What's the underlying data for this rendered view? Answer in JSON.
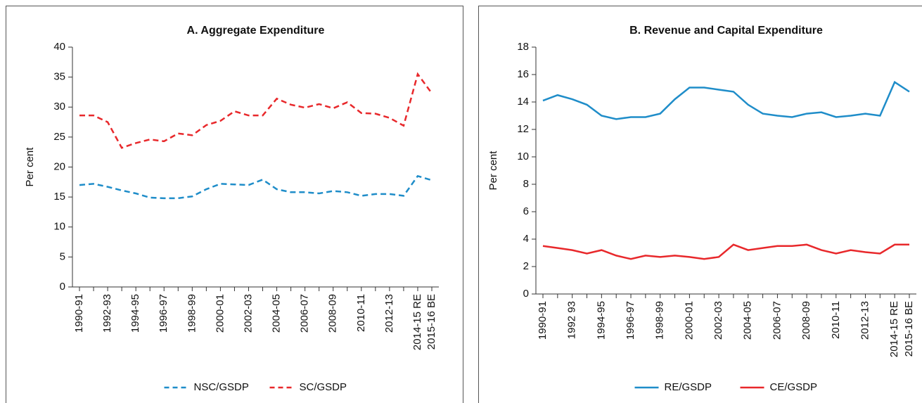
{
  "chart_data": [
    {
      "type": "line",
      "title": "A. Aggregate Expenditure",
      "ylabel": "Per cent",
      "categories": [
        "1990-91",
        null,
        "1992-93",
        null,
        "1994-95",
        null,
        "1996-97",
        null,
        "1998-99",
        null,
        "2000-01",
        null,
        "2002-03",
        null,
        "2004-05",
        null,
        "2006-07",
        null,
        "2008-09",
        null,
        "2010-11",
        null,
        "2012-13",
        null,
        "2014-15 RE",
        "2015-16 BE"
      ],
      "ylim": [
        0,
        40
      ],
      "yticks": [
        0,
        5,
        10,
        15,
        20,
        25,
        30,
        35,
        40
      ],
      "line_style": "dashed",
      "series": [
        {
          "name": "NSC/GSDP",
          "color": "#1f8dc9",
          "values": [
            17,
            17.2,
            16.7,
            16.1,
            15.6,
            14.9,
            14.8,
            14.8,
            15.1,
            16.3,
            17.2,
            17.1,
            17.0,
            17.9,
            16.3,
            15.8,
            15.8,
            15.6,
            16.0,
            15.8,
            15.2,
            15.5,
            15.5,
            15.2,
            18.5,
            17.8
          ]
        },
        {
          "name": "SC/GSDP",
          "color": "#e8282b",
          "values": [
            28.6,
            28.6,
            27.5,
            23.2,
            24.0,
            24.6,
            24.3,
            25.6,
            25.3,
            27.0,
            27.7,
            29.3,
            28.6,
            28.6,
            31.4,
            30.4,
            29.9,
            30.5,
            29.8,
            30.8,
            29.0,
            28.9,
            28.2,
            26.9,
            35.5,
            32.3
          ]
        }
      ]
    },
    {
      "type": "line",
      "title": "B. Revenue and Capital Expenditure",
      "ylabel": "Per cent",
      "categories": [
        "1990-91",
        null,
        "1992 93",
        null,
        "1994-95",
        null,
        "1996-97",
        null,
        "1998-99",
        null,
        "2000-01",
        null,
        "2002-03",
        null,
        "2004-05",
        null,
        "2006-07",
        null,
        "2008-09",
        null,
        "2010-11",
        null,
        "2012-13",
        null,
        "2014-15 RE",
        "2015-16 BE"
      ],
      "ylim": [
        0,
        18
      ],
      "yticks": [
        0,
        2,
        4,
        6,
        8,
        10,
        12,
        14,
        16,
        18
      ],
      "line_style": "solid",
      "series": [
        {
          "name": "RE/GSDP",
          "color": "#1f8dc9",
          "values": [
            14.1,
            14.5,
            14.2,
            13.8,
            13.0,
            12.75,
            12.9,
            12.9,
            13.15,
            14.2,
            15.05,
            15.05,
            14.9,
            14.75,
            13.8,
            13.15,
            13.0,
            12.9,
            13.15,
            13.25,
            12.9,
            13.0,
            13.15,
            13.0,
            15.45,
            14.75
          ]
        },
        {
          "name": "CE/GSDP",
          "color": "#e8282b",
          "values": [
            3.5,
            3.35,
            3.2,
            2.95,
            3.2,
            2.8,
            2.55,
            2.8,
            2.7,
            2.8,
            2.7,
            2.55,
            2.7,
            3.6,
            3.2,
            3.35,
            3.5,
            3.5,
            3.6,
            3.2,
            2.95,
            3.2,
            3.05,
            2.95,
            3.6,
            3.6
          ]
        }
      ]
    }
  ]
}
